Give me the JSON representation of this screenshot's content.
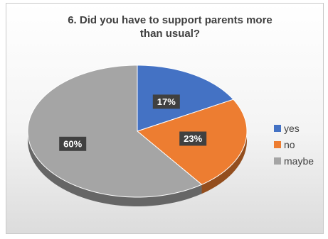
{
  "chart_data": {
    "type": "pie",
    "title": "6. Did you have to support parents more than usual?",
    "title_lines": [
      "6. Did you have to support parents more",
      "than usual?"
    ],
    "categories": [
      "yes",
      "no",
      "maybe"
    ],
    "values": [
      17,
      23,
      60
    ],
    "data_labels": [
      "17%",
      "23%",
      "60%"
    ],
    "colors": [
      "#4472C4",
      "#ED7D31",
      "#A5A5A5"
    ],
    "legend_position": "right",
    "style": "3d"
  }
}
